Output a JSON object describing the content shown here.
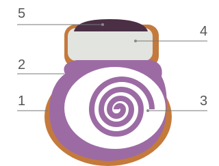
{
  "callouts": [
    "5",
    "4",
    "2",
    "1",
    "3"
  ]
}
